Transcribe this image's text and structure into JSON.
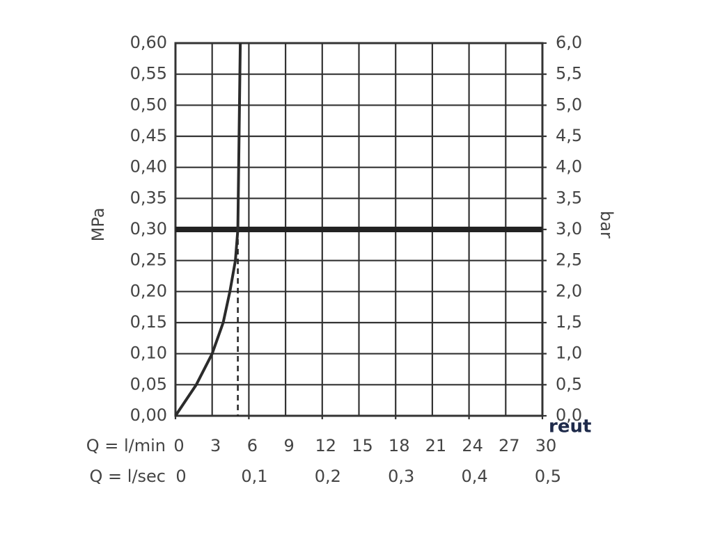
{
  "chart_data": {
    "type": "line",
    "y_label": "MPa",
    "y2_label": "bar",
    "x_label": "Q = l/min",
    "x2_label": "Q = l/sec",
    "watermark": "reut",
    "xlim": [
      0,
      30
    ],
    "xticks": [
      0,
      3,
      6,
      9,
      12,
      15,
      18,
      21,
      24,
      27,
      30
    ],
    "x2lim": [
      0,
      0.5
    ],
    "x2ticks": [
      0,
      {
        "value": 0.1,
        "label": "0,1"
      },
      {
        "value": 0.2,
        "label": "0,2"
      },
      {
        "value": 0.3,
        "label": "0,3"
      },
      {
        "value": 0.4,
        "label": "0,4"
      },
      {
        "value": 0.5,
        "label": "0,5"
      }
    ],
    "ylim": [
      0,
      0.6
    ],
    "yticks": [
      {
        "value": 0,
        "label": "0,00"
      },
      {
        "value": 0.05,
        "label": "0,05"
      },
      {
        "value": 0.1,
        "label": "0,10"
      },
      {
        "value": 0.15,
        "label": "0,15"
      },
      {
        "value": 0.2,
        "label": "0,20"
      },
      {
        "value": 0.25,
        "label": "0,25"
      },
      {
        "value": 0.3,
        "label": "0,30"
      },
      {
        "value": 0.35,
        "label": "0,35"
      },
      {
        "value": 0.4,
        "label": "0,40"
      },
      {
        "value": 0.45,
        "label": "0,45"
      },
      {
        "value": 0.5,
        "label": "0,50"
      },
      {
        "value": 0.55,
        "label": "0,55"
      },
      {
        "value": 0.6,
        "label": "0,60"
      }
    ],
    "y2lim": [
      0,
      6
    ],
    "y2ticks": [
      {
        "value": 0,
        "label": "0,0"
      },
      {
        "value": 0.5,
        "label": "0,5"
      },
      {
        "value": 1,
        "label": "1,0"
      },
      {
        "value": 1.5,
        "label": "1,5"
      },
      {
        "value": 2,
        "label": "2,0"
      },
      {
        "value": 2.5,
        "label": "2,5"
      },
      {
        "value": 3,
        "label": "3,0"
      },
      {
        "value": 3.5,
        "label": "3,5"
      },
      {
        "value": 4,
        "label": "4,0"
      },
      {
        "value": 4.5,
        "label": "4,5"
      },
      {
        "value": 5,
        "label": "5,0"
      },
      {
        "value": 5.5,
        "label": "5,5"
      },
      {
        "value": 6,
        "label": "6,0"
      }
    ],
    "grid": true,
    "series": [
      {
        "color": "#2b2b2b",
        "x": [
          0,
          1.7,
          3,
          3.9,
          4.45,
          4.9,
          5.1,
          5.2,
          5.3
        ],
        "values": [
          0,
          0.05,
          0.1,
          0.15,
          0.2,
          0.25,
          0.3,
          0.45,
          0.6
        ]
      }
    ],
    "operating_point": {
      "x": 5.1,
      "y": 0.3
    }
  }
}
